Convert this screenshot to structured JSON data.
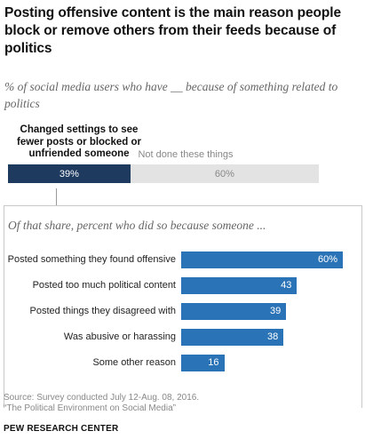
{
  "title": "Posting offensive content is the main reason people block or remove others from their feeds because of politics",
  "subtitle": "% of social media users who have __ because of something related to politics",
  "chart_data": [
    {
      "type": "bar",
      "orientation": "horizontal-stacked",
      "series": [
        {
          "name": "Changed settings to see fewer posts or blocked or unfriended someone",
          "value": 39,
          "label": "39%",
          "color": "#1f3a5f"
        },
        {
          "name": "Not done these things",
          "value": 60,
          "label": "60%",
          "color": "#e3e3e3"
        }
      ]
    },
    {
      "type": "bar",
      "orientation": "horizontal",
      "title": "Of that share, percent who did so because someone ...",
      "categories": [
        "Posted something they found offensive",
        "Posted too much political content",
        "Posted things they disagreed with",
        "Was abusive or harassing",
        "Some other reason"
      ],
      "values": [
        60,
        43,
        39,
        38,
        16
      ],
      "value_labels": [
        "60%",
        "43",
        "39",
        "38",
        "16"
      ],
      "color": "#2b73b7"
    }
  ],
  "source": "Source: Survey conducted July 12-Aug. 08, 2016.",
  "report": "“The Political Environment on Social Media”",
  "brand": "PEW RESEARCH CENTER"
}
